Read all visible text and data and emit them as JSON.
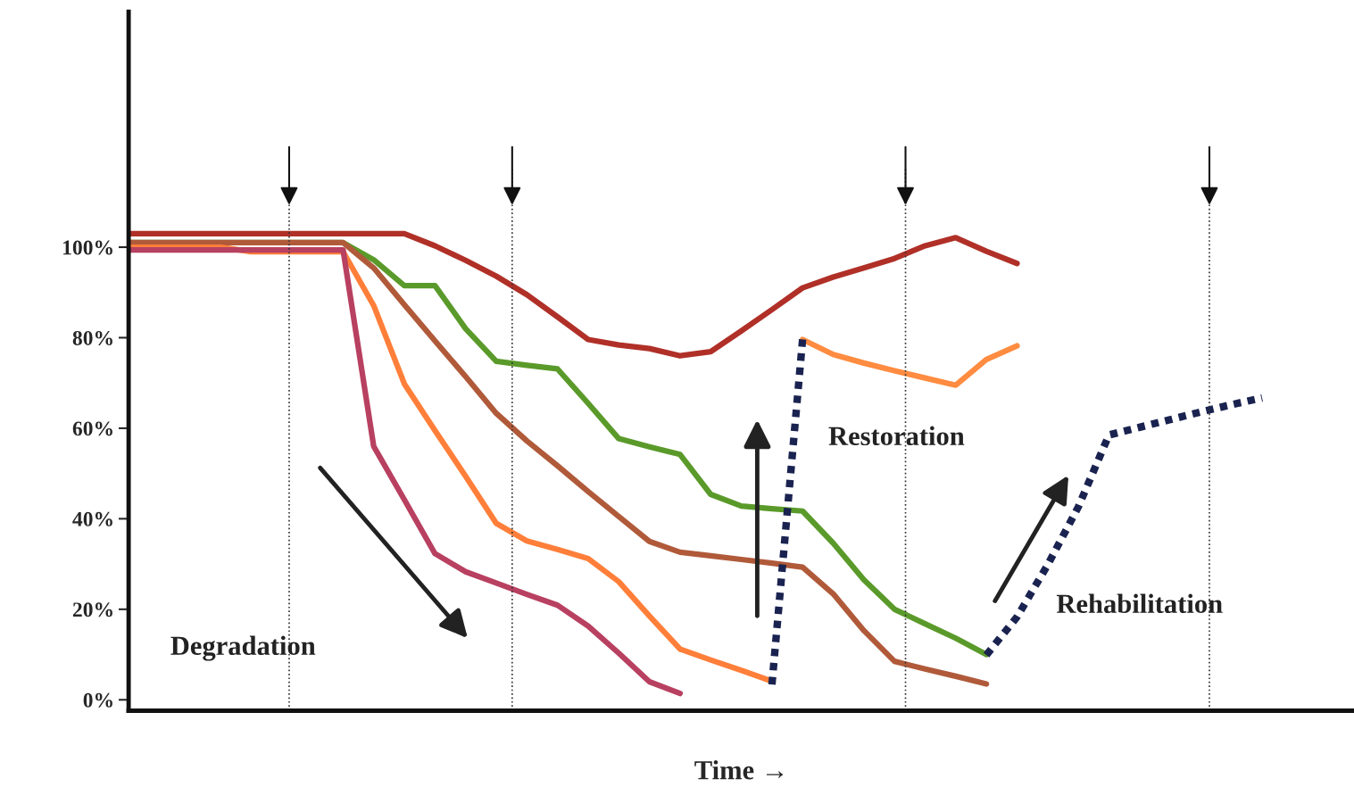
{
  "chart_data": {
    "type": "line",
    "xlabel": "Time →",
    "categories": [
      null,
      null,
      null,
      null,
      null,
      null,
      null,
      null,
      null,
      null,
      null,
      null,
      null,
      null,
      null,
      null,
      null,
      null,
      null,
      null,
      null,
      null,
      null,
      null,
      null,
      null,
      null,
      null,
      null,
      null,
      null,
      null,
      null,
      null,
      null,
      null,
      null,
      null,
      null,
      null,
      null
    ],
    "ylim": [
      -2.4,
      152
    ],
    "yticks": [
      {
        "value": 0,
        "label": "0%"
      },
      {
        "value": 20,
        "label": "20%"
      },
      {
        "value": 40,
        "label": "40%"
      },
      {
        "value": 60,
        "label": "60%"
      },
      {
        "value": 80,
        "label": "80%"
      },
      {
        "value": 100,
        "label": "100%"
      }
    ],
    "tick_labels": "y",
    "grid": false,
    "legend": false,
    "marker": "none",
    "line_style": "solid",
    "series": [
      {
        "color": "#b03028",
        "values": [
          103,
          103,
          103,
          103,
          103,
          103,
          103,
          103,
          103,
          103,
          100.3,
          97.1,
          93.6,
          89.5,
          84.6,
          79.6,
          78.4,
          77.6,
          76.0,
          76.9,
          81.5,
          86.2,
          91.0,
          93.4,
          95.4,
          97.5,
          100.3,
          102.1,
          99.1,
          96.4,
          null,
          null,
          null,
          null,
          null,
          null,
          null,
          null,
          null,
          null,
          null
        ]
      },
      {
        "color": "#5a9a2a",
        "values": [
          101,
          101,
          101,
          101,
          101,
          101,
          101,
          101,
          97.2,
          91.5,
          91.5,
          82.0,
          74.8,
          73.9,
          73.1,
          65.5,
          57.7,
          55.9,
          54.2,
          45.4,
          42.8,
          42.2,
          41.7,
          34.6,
          26.5,
          20.0,
          16.8,
          13.6,
          10.0,
          null,
          null,
          null,
          null,
          null,
          null,
          null,
          null,
          null,
          null,
          null,
          null
        ]
      },
      {
        "color": "#b05a3a",
        "values": [
          101,
          101,
          101,
          101,
          101,
          101,
          101,
          101,
          95.4,
          87.3,
          79.3,
          71.4,
          63.3,
          57.2,
          51.7,
          46.0,
          40.5,
          35.0,
          32.6,
          31.8,
          31.0,
          30.2,
          29.3,
          23.4,
          15.3,
          8.5,
          6.8,
          5.2,
          3.5,
          null,
          null,
          null,
          null,
          null,
          null,
          null,
          null,
          null,
          null,
          null,
          null
        ]
      },
      {
        "color": "#ff7f3a",
        "values": [
          100,
          100,
          100,
          100,
          99,
          99,
          99,
          99,
          87.1,
          69.8,
          59.5,
          49.4,
          39.0,
          35.1,
          33.2,
          31.2,
          26.1,
          18.5,
          11.2,
          8.8,
          6.5,
          4.1,
          null,
          null,
          null,
          null,
          null,
          null,
          null,
          null,
          null,
          null,
          null,
          null,
          null,
          null,
          null,
          null,
          null,
          null,
          null
        ]
      },
      {
        "color": "#b84060",
        "values": [
          99.4,
          99.4,
          99.4,
          99.4,
          99.4,
          99.4,
          99.4,
          99.4,
          56.0,
          44.2,
          32.3,
          28.3,
          25.8,
          23.3,
          20.9,
          16.3,
          10.3,
          4.0,
          1.4,
          null,
          null,
          null,
          null,
          null,
          null,
          null,
          null,
          null,
          null,
          null,
          null,
          null,
          null,
          null,
          null,
          null,
          null,
          null,
          null,
          null,
          null
        ]
      },
      {
        "color": "#ff8c40",
        "values": [
          null,
          null,
          null,
          null,
          null,
          null,
          null,
          null,
          null,
          null,
          null,
          null,
          null,
          null,
          null,
          null,
          null,
          null,
          null,
          null,
          null,
          null,
          79.6,
          76.3,
          74.4,
          72.7,
          71.1,
          69.5,
          75.2,
          78.2,
          null,
          null,
          null,
          null,
          null,
          null,
          null,
          null,
          null,
          null,
          null
        ]
      },
      {
        "color": "#1a2350",
        "line_style": "dotted",
        "values": [
          null,
          null,
          null,
          null,
          null,
          null,
          null,
          null,
          null,
          null,
          null,
          null,
          null,
          null,
          null,
          null,
          null,
          null,
          null,
          null,
          null,
          3.4,
          79.6,
          null,
          null,
          null,
          null,
          null,
          null,
          null,
          null,
          null,
          null,
          null,
          null,
          null,
          null,
          null,
          null,
          null,
          null
        ]
      },
      {
        "color": "#1a2350",
        "line_style": "dotted",
        "values": [
          null,
          null,
          null,
          null,
          null,
          null,
          null,
          null,
          null,
          null,
          null,
          null,
          null,
          null,
          null,
          null,
          null,
          null,
          null,
          null,
          null,
          null,
          null,
          null,
          null,
          null,
          null,
          null,
          9.9,
          18.3,
          29.8,
          42.6,
          58.5,
          60.2,
          61.9,
          63.6,
          65.2,
          66.7,
          null,
          null,
          null
        ]
      }
    ],
    "annotations": [
      "Degradation",
      "Restoration",
      "Rehabilitation"
    ]
  }
}
